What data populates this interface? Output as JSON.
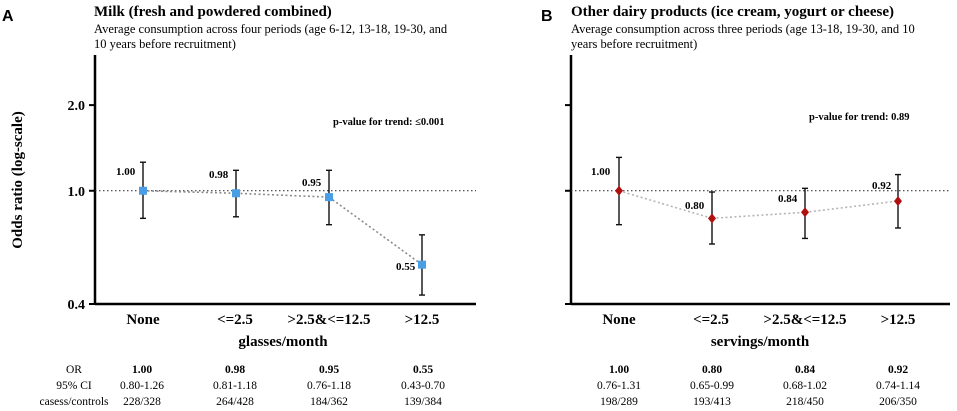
{
  "chart_data": [
    {
      "type": "scatter",
      "panel": "A",
      "title": "Milk (fresh and powdered combined)",
      "subtitle_lines": [
        "Average consumption across four periods (age 6-12, 13-18, 19-30, and",
        "10 years before recruitment)"
      ],
      "ylabel": "Odds ratio (log-scale)",
      "yscale": "log",
      "ylim": [
        0.4,
        3.0
      ],
      "yticks": [
        {
          "value": 0.4,
          "label": "0.4"
        },
        {
          "value": 1.0,
          "label": "1.0"
        },
        {
          "value": 2.0,
          "label": "2.0"
        }
      ],
      "xlabel": "glasses/month",
      "categories": [
        "None",
        "<=2.5",
        ">2.5&<=12.5",
        ">12.5"
      ],
      "reference_line": 1.0,
      "marker": "square",
      "color": "#4a9ee6",
      "trend_line_color": "#8a8a8a",
      "or_values": [
        1.0,
        0.98,
        0.95,
        0.55
      ],
      "ci_low": [
        0.8,
        0.81,
        0.76,
        0.43
      ],
      "ci_high": [
        1.26,
        1.18,
        1.18,
        0.7
      ],
      "point_labels": [
        "1.00",
        "0.98",
        "0.95",
        "0.55"
      ],
      "p_trend_text": "p-value for trend: ≤0.001",
      "table": {
        "row_labels": [
          "OR",
          "95% CI",
          "casess/controls"
        ],
        "or": [
          "1.00",
          "0.98",
          "0.95",
          "0.55"
        ],
        "ci": [
          "0.80-1.26",
          "0.81-1.18",
          "0.76-1.18",
          "0.43-0.70"
        ],
        "cases_controls": [
          "228/328",
          "264/428",
          "184/362",
          "139/384"
        ]
      }
    },
    {
      "type": "scatter",
      "panel": "B",
      "title": "Other dairy products (ice cream, yogurt or cheese)",
      "subtitle_lines": [
        "Average consumption across three periods (age 13-18, 19-30, and 10",
        "years before recruitment)"
      ],
      "yscale": "log",
      "ylim": [
        0.4,
        3.0
      ],
      "xlabel": "servings/month",
      "categories": [
        "None",
        "<=2.5",
        ">2.5&<=12.5",
        ">12.5"
      ],
      "reference_line": 1.0,
      "marker": "diamond",
      "color": "#b01010",
      "trend_line_color": "#b5b5b5",
      "or_values": [
        1.0,
        0.8,
        0.84,
        0.92
      ],
      "ci_low": [
        0.76,
        0.65,
        0.68,
        0.74
      ],
      "ci_high": [
        1.31,
        0.99,
        1.02,
        1.14
      ],
      "point_labels": [
        "1.00",
        "0.80",
        "0.84",
        "0.92"
      ],
      "p_trend_text": "p-value for trend: 0.89",
      "table": {
        "or": [
          "1.00",
          "0.80",
          "0.84",
          "0.92"
        ],
        "ci": [
          "0.76-1.31",
          "0.65-0.99",
          "0.68-1.02",
          "0.74-1.14"
        ],
        "cases_controls": [
          "198/289",
          "193/413",
          "218/450",
          "206/350"
        ]
      }
    }
  ]
}
